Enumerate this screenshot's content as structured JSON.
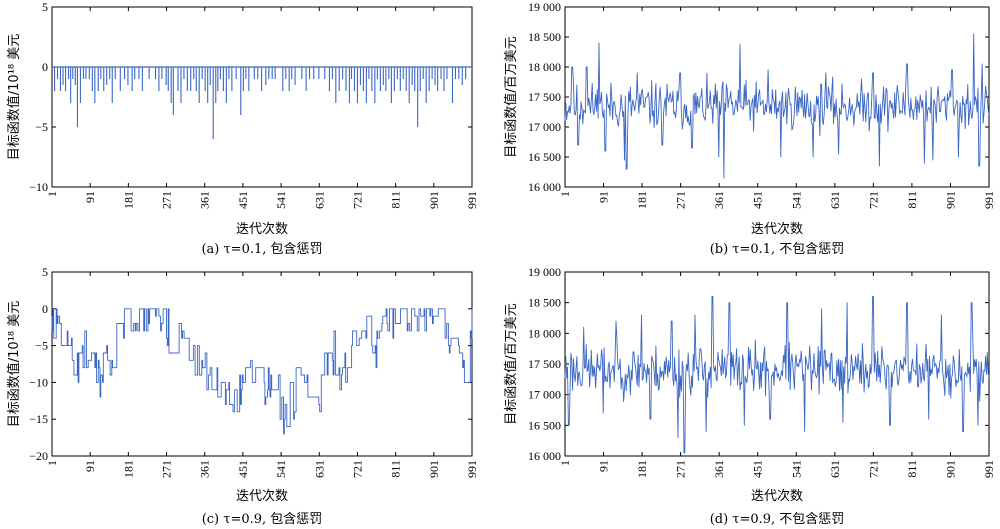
{
  "line_color": "#3a66c4",
  "chart_data": [
    {
      "id": "a",
      "type": "line",
      "caption": "(a) τ=0.1, 包含惩罚",
      "xlabel": "迭代次数",
      "ylabel": "目标函数值/10¹⁸ 美元",
      "x_ticks": [
        "1",
        "91",
        "181",
        "271",
        "361",
        "451",
        "541",
        "631",
        "721",
        "811",
        "901",
        "991"
      ],
      "y_ticks": [
        "5",
        "0",
        "−5",
        "−10"
      ],
      "xlim": [
        1,
        991
      ],
      "ylim": [
        -10,
        5
      ],
      "style": "spikes_from_zero",
      "baseline": 0,
      "series": [
        {
          "points": [
            [
              7,
              -2
            ],
            [
              14,
              -1
            ],
            [
              21,
              -2
            ],
            [
              27,
              -1.5
            ],
            [
              33,
              -2
            ],
            [
              40,
              -1
            ],
            [
              45,
              -3
            ],
            [
              50,
              -1
            ],
            [
              56,
              -1.5
            ],
            [
              61,
              -5
            ],
            [
              68,
              -3
            ],
            [
              75,
              -1
            ],
            [
              81,
              -1
            ],
            [
              89,
              -1
            ],
            [
              96,
              -2
            ],
            [
              102,
              -3
            ],
            [
              110,
              -2
            ],
            [
              116,
              -1
            ],
            [
              123,
              -2
            ],
            [
              130,
              -1.5
            ],
            [
              137,
              -1
            ],
            [
              143,
              -3
            ],
            [
              150,
              -1
            ],
            [
              162,
              -2
            ],
            [
              172,
              -1
            ],
            [
              180,
              -1.5
            ],
            [
              190,
              -2
            ],
            [
              196,
              -1
            ],
            [
              206,
              -1
            ],
            [
              214,
              -2
            ],
            [
              230,
              -1
            ],
            [
              245,
              -1
            ],
            [
              253,
              -2
            ],
            [
              260,
              -1
            ],
            [
              270,
              -1.5
            ],
            [
              275,
              -2
            ],
            [
              282,
              -3
            ],
            [
              287,
              -4
            ],
            [
              298,
              -2
            ],
            [
              305,
              -3
            ],
            [
              312,
              -1
            ],
            [
              320,
              -2
            ],
            [
              328,
              -2
            ],
            [
              335,
              -1
            ],
            [
              341,
              -2
            ],
            [
              348,
              -3
            ],
            [
              355,
              -1
            ],
            [
              362,
              -2
            ],
            [
              368,
              -3
            ],
            [
              374,
              -1.5
            ],
            [
              381,
              -6
            ],
            [
              387,
              -3
            ],
            [
              392,
              -2
            ],
            [
              398,
              -1
            ],
            [
              405,
              -2
            ],
            [
              412,
              -3
            ],
            [
              418,
              -1
            ],
            [
              425,
              -2
            ],
            [
              435,
              -1
            ],
            [
              446,
              -4
            ],
            [
              452,
              -2
            ],
            [
              458,
              -1
            ],
            [
              465,
              -2
            ],
            [
              478,
              -1
            ],
            [
              486,
              -1
            ],
            [
              495,
              -2
            ],
            [
              505,
              -1.5
            ],
            [
              512,
              -1
            ],
            [
              520,
              -1
            ],
            [
              527,
              -1
            ],
            [
              545,
              -2
            ],
            [
              552,
              -1
            ],
            [
              560,
              -2
            ],
            [
              566,
              -1
            ],
            [
              574,
              -1.5
            ],
            [
              590,
              -1
            ],
            [
              600,
              -2
            ],
            [
              608,
              -1
            ],
            [
              618,
              -1
            ],
            [
              630,
              -1
            ],
            [
              644,
              -1
            ],
            [
              655,
              -2
            ],
            [
              662,
              -1
            ],
            [
              670,
              -3
            ],
            [
              678,
              -2
            ],
            [
              686,
              -1
            ],
            [
              694,
              -2
            ],
            [
              702,
              -3
            ],
            [
              707,
              -1
            ],
            [
              714,
              -2
            ],
            [
              721,
              -3
            ],
            [
              728,
              -1.5
            ],
            [
              735,
              -2
            ],
            [
              742,
              -3
            ],
            [
              748,
              -1
            ],
            [
              755,
              -2
            ],
            [
              762,
              -3
            ],
            [
              768,
              -1
            ],
            [
              775,
              -2
            ],
            [
              782,
              -1.5
            ],
            [
              788,
              -2
            ],
            [
              795,
              -1
            ],
            [
              801,
              -3
            ],
            [
              808,
              -2
            ],
            [
              815,
              -1
            ],
            [
              822,
              -2
            ],
            [
              829,
              -1
            ],
            [
              836,
              -2
            ],
            [
              843,
              -3
            ],
            [
              850,
              -1.5
            ],
            [
              856,
              -2
            ],
            [
              863,
              -5
            ],
            [
              869,
              -2
            ],
            [
              876,
              -1
            ],
            [
              883,
              -3
            ],
            [
              890,
              -2
            ],
            [
              897,
              -1
            ],
            [
              904,
              -1.5
            ],
            [
              910,
              -2
            ],
            [
              918,
              -1
            ],
            [
              925,
              -2
            ],
            [
              932,
              -1
            ],
            [
              945,
              -3
            ],
            [
              952,
              -1
            ],
            [
              960,
              -1
            ],
            [
              968,
              -1.5
            ],
            [
              976,
              -1
            ]
          ]
        }
      ]
    },
    {
      "id": "b",
      "type": "line",
      "caption": "(b) τ=0.1, 不包含惩罚",
      "xlabel": "迭代次数",
      "ylabel": "目标函数值/百万美元",
      "x_ticks": [
        "1",
        "91",
        "181",
        "271",
        "361",
        "451",
        "541",
        "631",
        "721",
        "811",
        "901",
        "991"
      ],
      "y_ticks": [
        "19 000",
        "18 500",
        "18 000",
        "17 500",
        "17 000",
        "16 500",
        "16 000"
      ],
      "xlim": [
        1,
        991
      ],
      "ylim": [
        16000,
        19000
      ],
      "style": "noise_line",
      "noise": {
        "n": 500,
        "mean": 17350,
        "amplitude": 320,
        "seed": 11,
        "spikes_up": [
          [
            18,
            18000
          ],
          [
            52,
            18000
          ],
          [
            80,
            18400
          ],
          [
            170,
            17900
          ],
          [
            270,
            17900
          ],
          [
            410,
            18380
          ],
          [
            475,
            17950
          ],
          [
            610,
            17900
          ],
          [
            720,
            17900
          ],
          [
            800,
            18050
          ],
          [
            905,
            17950
          ],
          [
            955,
            18550
          ],
          [
            975,
            18050
          ]
        ],
        "spikes_down": [
          [
            32,
            16700
          ],
          [
            95,
            16600
          ],
          [
            140,
            16450
          ],
          [
            145,
            16300
          ],
          [
            228,
            16700
          ],
          [
            298,
            16650
          ],
          [
            360,
            16500
          ],
          [
            372,
            16150
          ],
          [
            505,
            16500
          ],
          [
            580,
            16500
          ],
          [
            640,
            16550
          ],
          [
            735,
            16350
          ],
          [
            840,
            16400
          ],
          [
            860,
            16450
          ],
          [
            920,
            16500
          ],
          [
            968,
            16350
          ]
        ],
        "clamp": [
          16100,
          18600
        ]
      }
    },
    {
      "id": "c",
      "type": "line",
      "caption": "(c) τ=0.9, 包含惩罚",
      "xlabel": "迭代次数",
      "ylabel": "目标函数值/10¹⁸ 美元",
      "x_ticks": [
        "1",
        "91",
        "181",
        "271",
        "361",
        "451",
        "541",
        "631",
        "721",
        "811",
        "901",
        "991"
      ],
      "y_ticks": [
        "5",
        "0",
        "−5",
        "−10",
        "−15",
        "−20"
      ],
      "xlim": [
        1,
        991
      ],
      "ylim": [
        -20,
        5
      ],
      "style": "random_walk",
      "walk": {
        "n": 500,
        "seed": 7,
        "levels": [
          [
            1,
            -1
          ],
          [
            35,
            -3
          ],
          [
            55,
            -8
          ],
          [
            80,
            -6
          ],
          [
            110,
            -9
          ],
          [
            140,
            -7
          ],
          [
            160,
            -2
          ],
          [
            180,
            0
          ],
          [
            200,
            0
          ],
          [
            230,
            -1
          ],
          [
            250,
            0
          ],
          [
            275,
            -3
          ],
          [
            300,
            -5
          ],
          [
            330,
            -6
          ],
          [
            360,
            -8
          ],
          [
            400,
            -10
          ],
          [
            440,
            -12
          ],
          [
            480,
            -9
          ],
          [
            520,
            -10
          ],
          [
            550,
            -14
          ],
          [
            580,
            -11
          ],
          [
            600,
            -8
          ],
          [
            630,
            -11
          ],
          [
            660,
            -6
          ],
          [
            690,
            -9
          ],
          [
            710,
            -3
          ],
          [
            730,
            -2
          ],
          [
            760,
            -5
          ],
          [
            790,
            -3
          ],
          [
            810,
            -1
          ],
          [
            830,
            0
          ],
          [
            860,
            0
          ],
          [
            900,
            0
          ],
          [
            930,
            -2
          ],
          [
            955,
            -4
          ],
          [
            975,
            -10
          ],
          [
            985,
            -7
          ],
          [
            991,
            -1
          ]
        ],
        "spread": 3.2,
        "clamp": [
          -18,
          0
        ]
      }
    },
    {
      "id": "d",
      "type": "line",
      "caption": "(d) τ=0.9, 不包含惩罚",
      "xlabel": "迭代次数",
      "ylabel": "目标函数值/百万美元",
      "x_ticks": [
        "1",
        "91",
        "181",
        "271",
        "361",
        "451",
        "541",
        "631",
        "721",
        "811",
        "901",
        "991"
      ],
      "y_ticks": [
        "19 000",
        "18 500",
        "18 000",
        "17 500",
        "17 000",
        "16 500",
        "16 000"
      ],
      "xlim": [
        1,
        991
      ],
      "ylim": [
        16000,
        19000
      ],
      "style": "noise_line",
      "noise": {
        "n": 500,
        "mean": 17400,
        "amplitude": 330,
        "seed": 23,
        "spikes_up": [
          [
            45,
            18100
          ],
          [
            120,
            18200
          ],
          [
            180,
            18300
          ],
          [
            250,
            18200
          ],
          [
            305,
            18300
          ],
          [
            345,
            18600
          ],
          [
            385,
            18500
          ],
          [
            520,
            18500
          ],
          [
            600,
            18400
          ],
          [
            660,
            18500
          ],
          [
            720,
            18600
          ],
          [
            800,
            18500
          ],
          [
            880,
            18300
          ],
          [
            950,
            18500
          ]
        ],
        "spikes_down": [
          [
            10,
            16500
          ],
          [
            90,
            16700
          ],
          [
            200,
            16600
          ],
          [
            265,
            16300
          ],
          [
            280,
            16000
          ],
          [
            330,
            16400
          ],
          [
            420,
            16500
          ],
          [
            480,
            16600
          ],
          [
            560,
            16400
          ],
          [
            650,
            16550
          ],
          [
            760,
            16500
          ],
          [
            850,
            16600
          ],
          [
            930,
            16400
          ],
          [
            965,
            16500
          ]
        ],
        "clamp": [
          16050,
          18600
        ]
      }
    }
  ]
}
